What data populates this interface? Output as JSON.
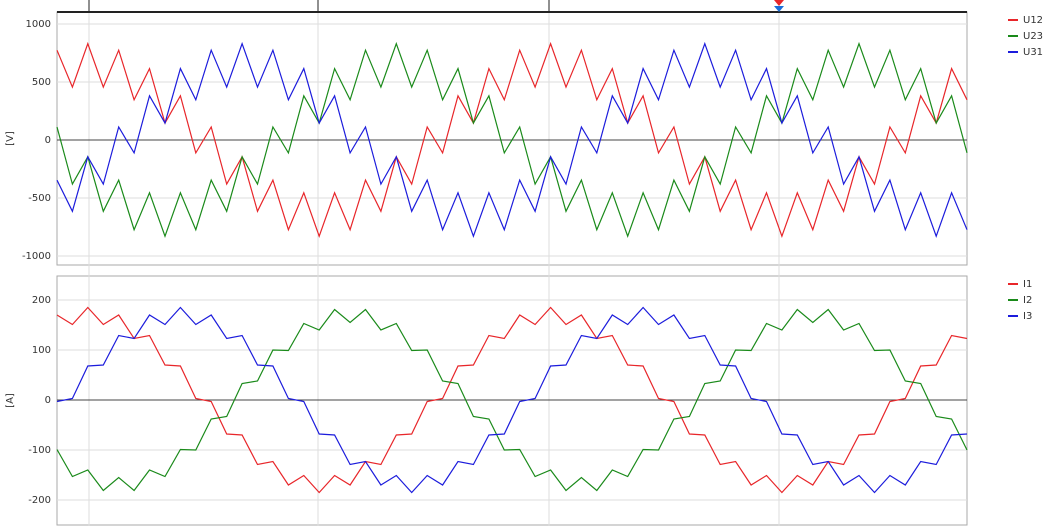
{
  "chart_data": [
    {
      "type": "line",
      "ylabel": "[V]",
      "ylim": [
        -1078,
        1103
      ],
      "yticks": [
        -1000,
        -500,
        0,
        500,
        1000
      ],
      "grid": true,
      "legend": "right",
      "series": [
        {
          "name": "U12",
          "color": "#e8262a",
          "values": [
            774,
            456,
            830,
            456,
            774,
            346,
            615,
            145,
            381,
            -112,
            112,
            -381,
            -145,
            -615,
            -346,
            -774,
            -456,
            -830,
            -456,
            -774,
            -346,
            -615,
            -145,
            -381,
            112,
            -112,
            381,
            145,
            615,
            346,
            774,
            456,
            830,
            456,
            774,
            346,
            615,
            145,
            381,
            -112,
            112,
            -381,
            -145,
            -615,
            -346,
            -774,
            -456,
            -830,
            -456,
            -774,
            -346,
            -615,
            -145,
            -381,
            112,
            -112,
            381,
            145,
            615,
            346
          ]
        },
        {
          "name": "U23",
          "color": "#1a8a1a",
          "values": [
            112,
            -381,
            -145,
            -615,
            -346,
            -774,
            -456,
            -830,
            -456,
            -774,
            -346,
            -615,
            -145,
            -381,
            112,
            -112,
            381,
            145,
            615,
            346,
            774,
            456,
            830,
            456,
            774,
            346,
            615,
            145,
            381,
            -112,
            112,
            -381,
            -145,
            -615,
            -346,
            -774,
            -456,
            -830,
            -456,
            -774,
            -346,
            -615,
            -145,
            -381,
            112,
            -112,
            381,
            145,
            615,
            346,
            774,
            456,
            830,
            456,
            774,
            346,
            615,
            145,
            381,
            -112
          ]
        },
        {
          "name": "U31",
          "color": "#1c1cdc",
          "values": [
            -346,
            -615,
            -145,
            -381,
            112,
            -112,
            381,
            145,
            615,
            346,
            774,
            456,
            830,
            456,
            774,
            346,
            615,
            145,
            381,
            -112,
            112,
            -381,
            -145,
            -615,
            -346,
            -774,
            -456,
            -830,
            -456,
            -774,
            -346,
            -615,
            -145,
            -381,
            112,
            -112,
            381,
            145,
            615,
            346,
            774,
            456,
            830,
            456,
            774,
            346,
            615,
            145,
            381,
            -112,
            112,
            -381,
            -145,
            -615,
            -346,
            -774,
            -456,
            -830,
            -456,
            -774
          ]
        }
      ]
    },
    {
      "type": "line",
      "ylabel": "[A]",
      "ylim": [
        -250,
        248
      ],
      "yticks": [
        -200,
        -100,
        0,
        100,
        200
      ],
      "grid": true,
      "legend": "right",
      "series": [
        {
          "name": "I1",
          "color": "#e8262a",
          "values": [
            170,
            151,
            185,
            151,
            170,
            123,
            129,
            70,
            68,
            3,
            -3,
            -68,
            -70,
            -129,
            -123,
            -170,
            -151,
            -185,
            -151,
            -170,
            -123,
            -129,
            -70,
            -68,
            -3,
            3,
            68,
            70,
            129,
            123,
            170,
            151,
            185,
            151,
            170,
            123,
            129,
            70,
            68,
            3,
            -3,
            -68,
            -70,
            -129,
            -123,
            -170,
            -151,
            -185,
            -151,
            -170,
            -123,
            -129,
            -70,
            -68,
            -3,
            3,
            68,
            70,
            129,
            123
          ]
        },
        {
          "name": "I2",
          "color": "#1a8a1a",
          "values": [
            -99,
            -153,
            -140,
            -181,
            -155,
            -181,
            -140,
            -153,
            -99,
            -100,
            -38,
            -33,
            33,
            38,
            100,
            99,
            153,
            140,
            181,
            155,
            181,
            140,
            153,
            99,
            100,
            38,
            33,
            -33,
            -38,
            -100,
            -99,
            -153,
            -140,
            -181,
            -155,
            -181,
            -140,
            -153,
            -99,
            -100,
            -38,
            -33,
            33,
            38,
            100,
            99,
            153,
            140,
            181,
            155,
            181,
            140,
            153,
            99,
            100,
            38,
            33,
            -33,
            -38,
            -100
          ]
        },
        {
          "name": "I3",
          "color": "#1c1cdc",
          "values": [
            -3,
            3,
            68,
            70,
            129,
            123,
            170,
            151,
            185,
            151,
            170,
            123,
            129,
            70,
            68,
            3,
            -3,
            -68,
            -70,
            -129,
            -123,
            -170,
            -151,
            -185,
            -151,
            -170,
            -123,
            -129,
            -70,
            -68,
            -3,
            3,
            68,
            70,
            129,
            123,
            170,
            151,
            185,
            151,
            170,
            123,
            129,
            70,
            68,
            3,
            -3,
            -68,
            -70,
            -129,
            -123,
            -170,
            -151,
            -185,
            -151,
            -170,
            -123,
            -129,
            -70,
            -68
          ]
        }
      ]
    }
  ]
}
